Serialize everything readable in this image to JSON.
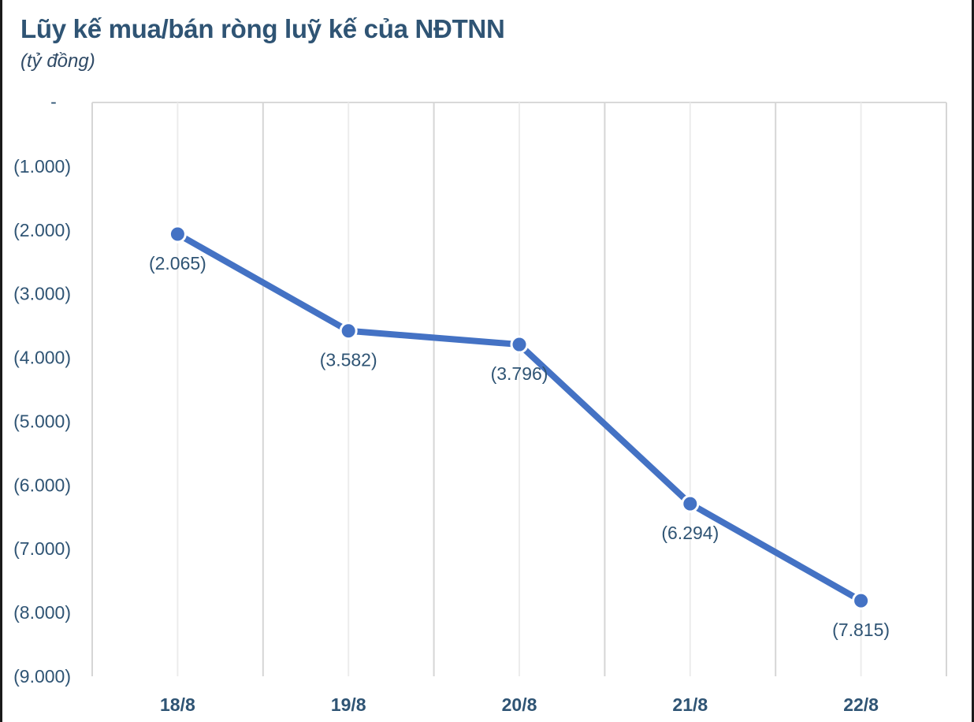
{
  "header": {
    "title": "Lũy kế mua/bán ròng luỹ kế của NĐTNN",
    "subtitle": "(tỷ đồng)"
  },
  "style": {
    "line_color": "#4472c4",
    "text_color": "#2f5474",
    "grid_color": "#d9d9d9"
  },
  "chart_data": {
    "type": "line",
    "title": "Lũy kế mua/bán ròng luỹ kế của NĐTNN",
    "subtitle": "(tỷ đồng)",
    "xlabel": "",
    "ylabel": "tỷ đồng",
    "categories": [
      "18/8",
      "19/8",
      "20/8",
      "21/8",
      "22/8"
    ],
    "series": [
      {
        "name": "Lũy kế mua/bán ròng",
        "values": [
          -2065,
          -3582,
          -3796,
          -6294,
          -7815
        ],
        "data_labels": [
          "(2.065)",
          "(3.582)",
          "(3.796)",
          "(6.294)",
          "(7.815)"
        ],
        "color": "#4472c4"
      }
    ],
    "ylim": [
      -9000,
      0
    ],
    "y_ticks": [
      0,
      -1000,
      -2000,
      -3000,
      -4000,
      -5000,
      -6000,
      -7000,
      -8000,
      -9000
    ],
    "y_tick_labels": [
      "-",
      "(1.000)",
      "(2.000)",
      "(3.000)",
      "(4.000)",
      "(5.000)",
      "(6.000)",
      "(7.000)",
      "(8.000)",
      "(9.000)"
    ],
    "grid": "vertical",
    "legend": "none"
  }
}
